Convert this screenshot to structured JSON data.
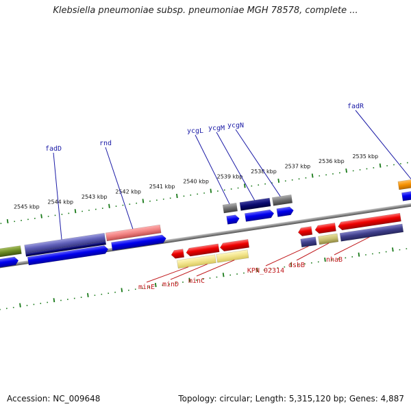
{
  "title": "Klebsiella pneumoniae subsp. pneumoniae MGH 78578, complete ...",
  "footer": {
    "accession": "Accession: NC_009648",
    "summary": "Topology: circular; Length: 5,315,120 bp; Genes: 4,887"
  },
  "tick_labels": [
    "2545 kbp",
    "2544 kbp",
    "2543 kbp",
    "2542 kbp",
    "2541 kbp",
    "2540 kbp",
    "2539 kbp",
    "2538 kbp",
    "2537 kbp",
    "2536 kbp",
    "2535 kbp"
  ],
  "genes_top": [
    {
      "name": "fadD"
    },
    {
      "name": "rnd"
    },
    {
      "name": "ycgL"
    },
    {
      "name": "ycgM"
    },
    {
      "name": "ycgN"
    },
    {
      "name": "fadR"
    }
  ],
  "genes_bottom": [
    {
      "name": "minE"
    },
    {
      "name": "minD"
    },
    {
      "name": "minC"
    },
    {
      "name": "KPN_02314"
    },
    {
      "name": "dsbB"
    },
    {
      "name": "nhaB"
    }
  ],
  "colors": {
    "forward": "#0000ee",
    "reverse": "#ee0000",
    "backbone": "#8a8a8a",
    "ticks": "#1a7a1a"
  }
}
